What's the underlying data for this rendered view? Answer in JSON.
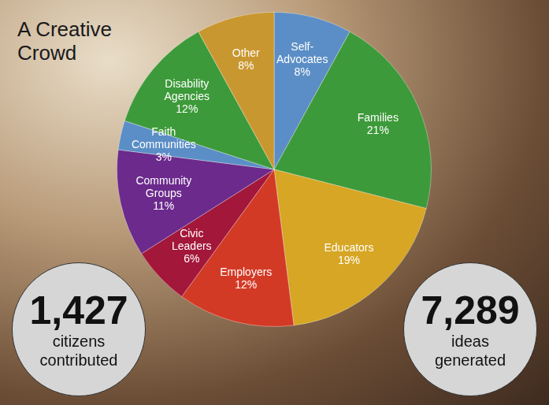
{
  "chart_data": {
    "type": "pie",
    "title": "A Creative Crowd",
    "categories": [
      "Self-Advocates",
      "Families",
      "Educators",
      "Employers",
      "Civic Leaders",
      "Community Groups",
      "Faith Communities",
      "Disability Agencies",
      "Other"
    ],
    "values": [
      8,
      21,
      19,
      12,
      6,
      11,
      3,
      12,
      8
    ],
    "value_labels": [
      "8%",
      "21%",
      "19%",
      "12%",
      "6%",
      "11%",
      "3%",
      "12%",
      "8%"
    ],
    "colors": [
      "#5b8ec6",
      "#3d9a3a",
      "#d6a624",
      "#d33a26",
      "#a3173a",
      "#6b2a8c",
      "#5b8ec6",
      "#3d9a3a",
      "#c99730"
    ],
    "data_labels": true
  },
  "stats": [
    {
      "value": 1427,
      "label": "1,427",
      "caption": "citizens contributed"
    },
    {
      "value": 7289,
      "label": "7,289",
      "caption": "ideas generated"
    }
  ]
}
